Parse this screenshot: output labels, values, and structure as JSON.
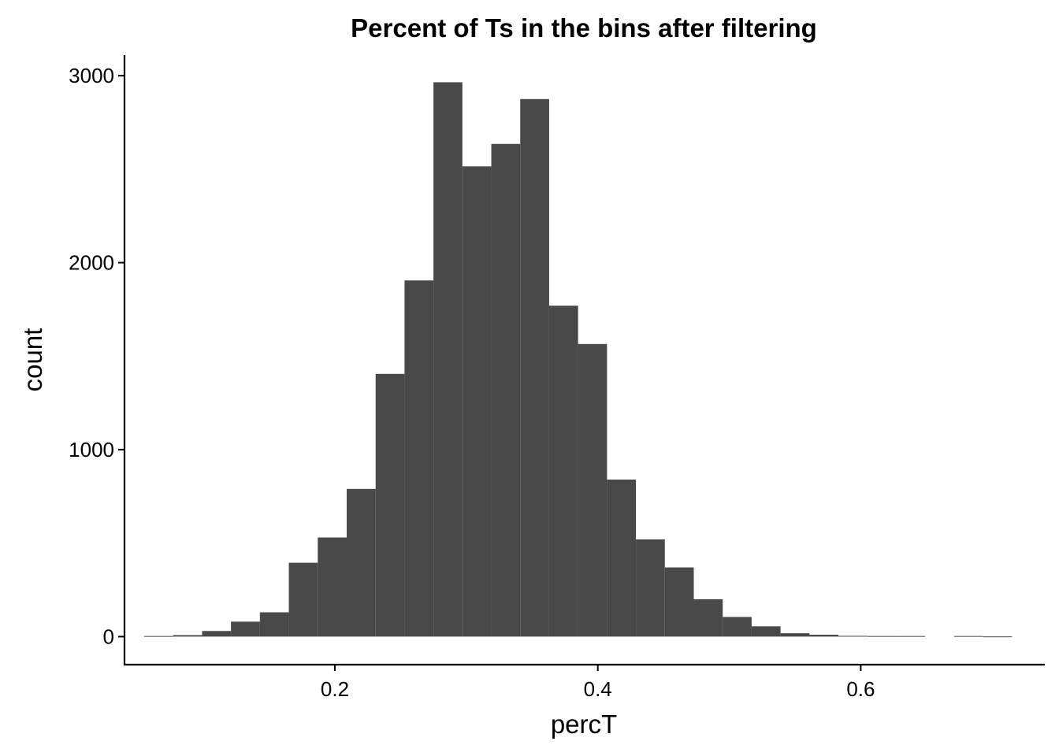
{
  "chart_data": {
    "type": "bar",
    "subtype": "histogram",
    "title": "Percent of Ts in the bins after filtering",
    "xlabel": "percT",
    "ylabel": "count",
    "bar_color": "#494949",
    "background": "#ffffff",
    "grid": false,
    "xlim": [
      0.04,
      0.74
    ],
    "ylim": [
      -150,
      3110
    ],
    "x_ticks": [
      {
        "value": 0.2,
        "label": "0.2"
      },
      {
        "value": 0.4,
        "label": "0.4"
      },
      {
        "value": 0.6,
        "label": "0.6"
      }
    ],
    "y_ticks": [
      {
        "value": 0,
        "label": "0"
      },
      {
        "value": 1000,
        "label": "1000"
      },
      {
        "value": 2000,
        "label": "2000"
      },
      {
        "value": 3000,
        "label": "3000"
      }
    ],
    "bins": [
      {
        "x0": 0.055,
        "x1": 0.077,
        "count": 3
      },
      {
        "x0": 0.077,
        "x1": 0.099,
        "count": 8
      },
      {
        "x0": 0.099,
        "x1": 0.121,
        "count": 30
      },
      {
        "x0": 0.121,
        "x1": 0.143,
        "count": 80
      },
      {
        "x0": 0.143,
        "x1": 0.165,
        "count": 130
      },
      {
        "x0": 0.165,
        "x1": 0.187,
        "count": 395
      },
      {
        "x0": 0.187,
        "x1": 0.209,
        "count": 530
      },
      {
        "x0": 0.209,
        "x1": 0.231,
        "count": 790
      },
      {
        "x0": 0.231,
        "x1": 0.253,
        "count": 1405
      },
      {
        "x0": 0.253,
        "x1": 0.275,
        "count": 1905
      },
      {
        "x0": 0.275,
        "x1": 0.297,
        "count": 2965
      },
      {
        "x0": 0.297,
        "x1": 0.319,
        "count": 2515
      },
      {
        "x0": 0.319,
        "x1": 0.341,
        "count": 2635
      },
      {
        "x0": 0.341,
        "x1": 0.363,
        "count": 2875
      },
      {
        "x0": 0.363,
        "x1": 0.385,
        "count": 1770
      },
      {
        "x0": 0.385,
        "x1": 0.407,
        "count": 1565
      },
      {
        "x0": 0.407,
        "x1": 0.429,
        "count": 840
      },
      {
        "x0": 0.429,
        "x1": 0.451,
        "count": 520
      },
      {
        "x0": 0.451,
        "x1": 0.473,
        "count": 370
      },
      {
        "x0": 0.473,
        "x1": 0.495,
        "count": 200
      },
      {
        "x0": 0.495,
        "x1": 0.517,
        "count": 105
      },
      {
        "x0": 0.517,
        "x1": 0.539,
        "count": 55
      },
      {
        "x0": 0.539,
        "x1": 0.561,
        "count": 18
      },
      {
        "x0": 0.561,
        "x1": 0.583,
        "count": 10
      },
      {
        "x0": 0.583,
        "x1": 0.605,
        "count": 4
      },
      {
        "x0": 0.605,
        "x1": 0.627,
        "count": 3
      },
      {
        "x0": 0.627,
        "x1": 0.649,
        "count": 3
      },
      {
        "x0": 0.649,
        "x1": 0.671,
        "count": 0
      },
      {
        "x0": 0.671,
        "x1": 0.693,
        "count": 3
      },
      {
        "x0": 0.693,
        "x1": 0.715,
        "count": 1
      }
    ]
  }
}
